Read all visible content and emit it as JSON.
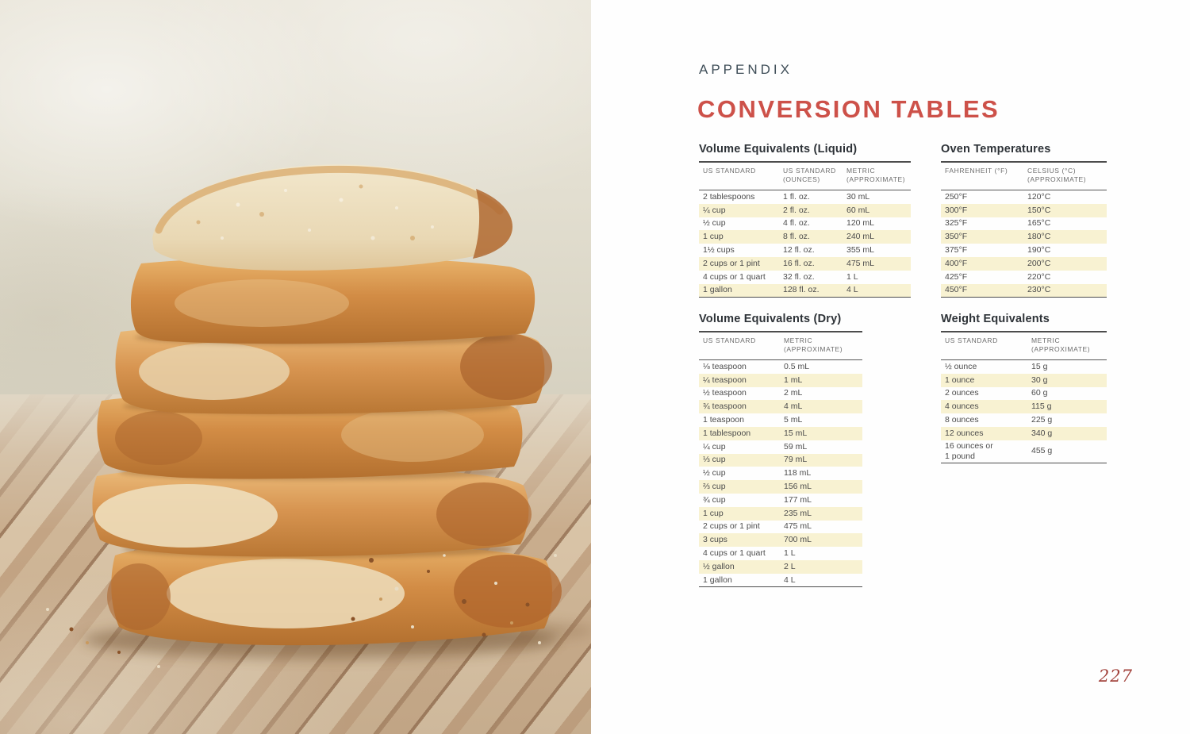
{
  "page": {
    "appendix_label": "APPENDIX",
    "title": "CONVERSION TABLES",
    "page_number": "227"
  },
  "photo": {
    "subject": "stack of six thick-cut bread slices on a wooden table against a plaster wall"
  },
  "colors": {
    "accent_red": "#cd5149",
    "heading_slate": "#3f4e58",
    "highlight_yellow": "#f8f2d2",
    "rule_dark": "#4c4c4c"
  },
  "tables": [
    {
      "id": "volume-liquid",
      "title": "Volume Equivalents (Liquid)",
      "headers": [
        "US STANDARD",
        "US STANDARD\n(OUNCES)",
        "METRIC\n(APPROXIMATE)"
      ],
      "rows": [
        [
          "2 tablespoons",
          "1 fl. oz.",
          "30 mL"
        ],
        [
          "¼ cup",
          "2 fl. oz.",
          "60 mL"
        ],
        [
          "½ cup",
          "4 fl. oz.",
          "120 mL"
        ],
        [
          "1 cup",
          "8 fl. oz.",
          "240 mL"
        ],
        [
          "1½ cups",
          "12 fl. oz.",
          "355 mL"
        ],
        [
          "2 cups or 1 pint",
          "16 fl. oz.",
          "475 mL"
        ],
        [
          "4 cups or 1 quart",
          "32 fl. oz.",
          "1 L"
        ],
        [
          "1 gallon",
          "128 fl. oz.",
          "4 L"
        ]
      ]
    },
    {
      "id": "oven-temperatures",
      "title": "Oven Temperatures",
      "headers": [
        "FAHRENHEIT (°F)",
        "CELSIUS (°C)\n(APPROXIMATE)"
      ],
      "rows": [
        [
          "250°F",
          "120°C"
        ],
        [
          "300°F",
          "150°C"
        ],
        [
          "325°F",
          "165°C"
        ],
        [
          "350°F",
          "180°C"
        ],
        [
          "375°F",
          "190°C"
        ],
        [
          "400°F",
          "200°C"
        ],
        [
          "425°F",
          "220°C"
        ],
        [
          "450°F",
          "230°C"
        ]
      ]
    },
    {
      "id": "volume-dry",
      "title": "Volume Equivalents (Dry)",
      "headers": [
        "US STANDARD",
        "METRIC\n(APPROXIMATE)"
      ],
      "rows": [
        [
          "⅛ teaspoon",
          "0.5 mL"
        ],
        [
          "¼ teaspoon",
          "1 mL"
        ],
        [
          "½ teaspoon",
          "2 mL"
        ],
        [
          "¾ teaspoon",
          "4 mL"
        ],
        [
          "1 teaspoon",
          "5 mL"
        ],
        [
          "1 tablespoon",
          "15 mL"
        ],
        [
          "¼ cup",
          "59 mL"
        ],
        [
          "⅓ cup",
          "79 mL"
        ],
        [
          "½ cup",
          "118 mL"
        ],
        [
          "⅔ cup",
          "156 mL"
        ],
        [
          "¾ cup",
          "177 mL"
        ],
        [
          "1 cup",
          "235 mL"
        ],
        [
          "2 cups or 1 pint",
          "475 mL"
        ],
        [
          "3 cups",
          "700 mL"
        ],
        [
          "4 cups or 1 quart",
          "1 L"
        ],
        [
          "½ gallon",
          "2 L"
        ],
        [
          "1 gallon",
          "4 L"
        ]
      ]
    },
    {
      "id": "weight-equivalents",
      "title": "Weight Equivalents",
      "headers": [
        "US STANDARD",
        "METRIC\n(APPROXIMATE)"
      ],
      "rows": [
        [
          "½ ounce",
          "15 g"
        ],
        [
          "1 ounce",
          "30 g"
        ],
        [
          "2 ounces",
          "60 g"
        ],
        [
          "4 ounces",
          "115 g"
        ],
        [
          "8 ounces",
          "225 g"
        ],
        [
          "12 ounces",
          "340 g"
        ],
        [
          "16 ounces or\n1 pound",
          "455 g"
        ]
      ]
    }
  ]
}
